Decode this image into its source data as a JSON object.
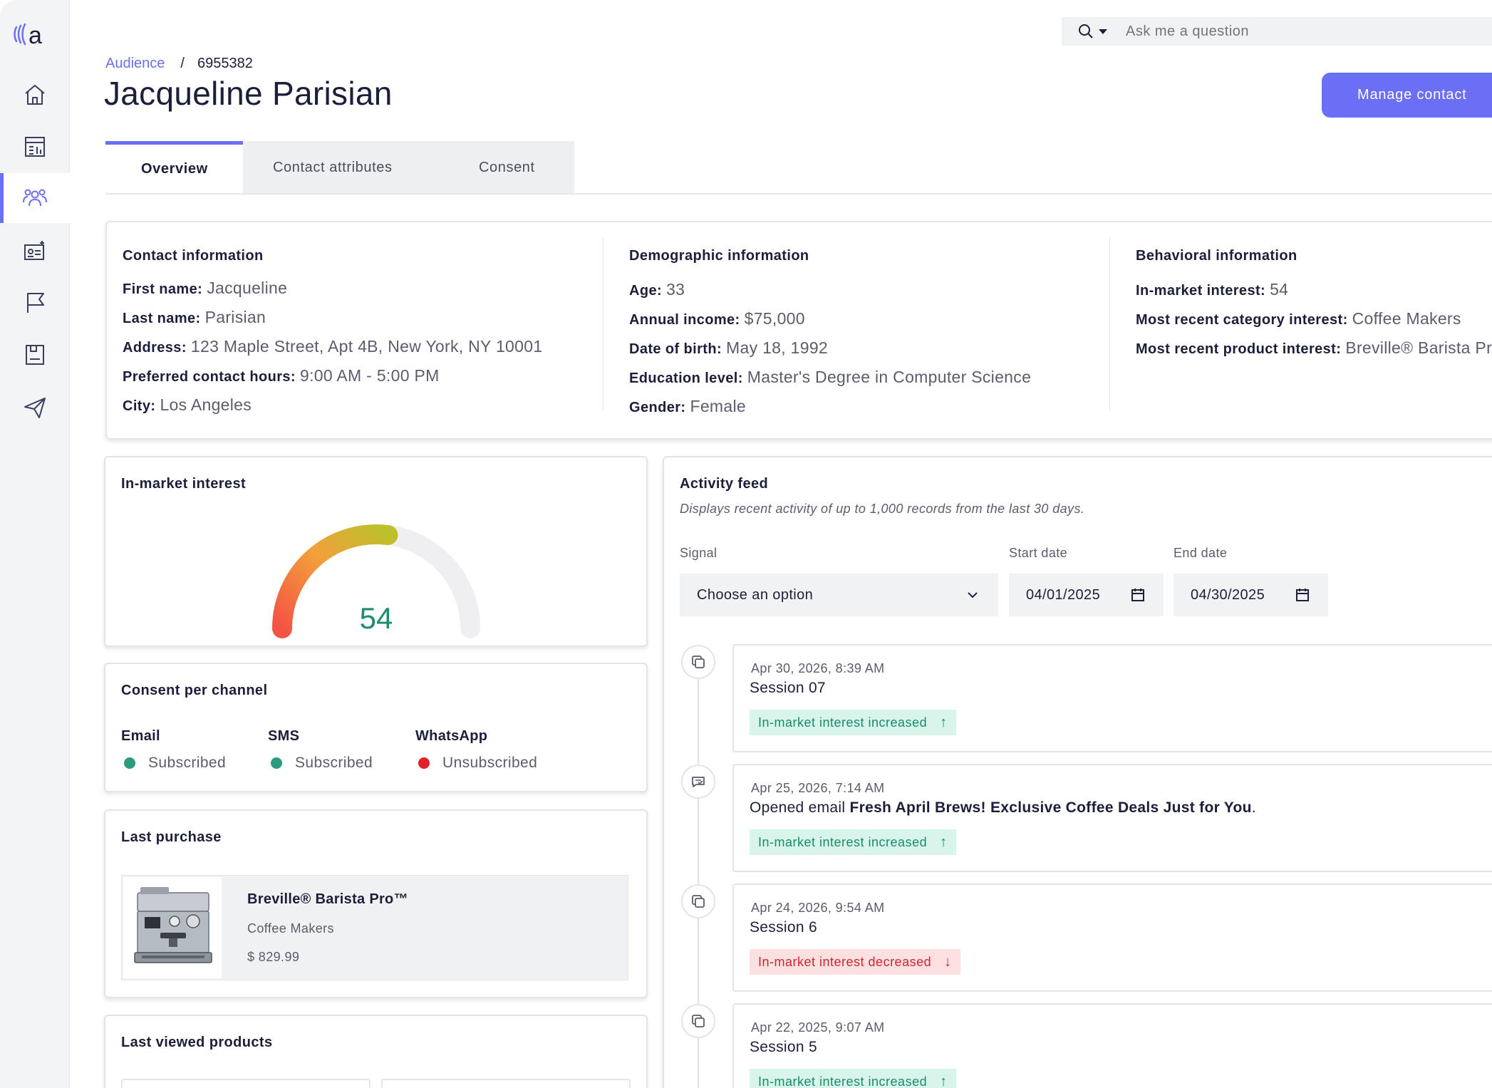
{
  "colors": {
    "accent": "#6b6ff5",
    "subscribed": "#2b9a80",
    "unsubscribed": "#e0222d",
    "tag_up_bg": "#d7f5ea",
    "tag_down_bg": "#fde1e1"
  },
  "sidebar": {
    "items": [
      {
        "icon": "home-icon"
      },
      {
        "icon": "dashboard-icon"
      },
      {
        "icon": "audience-icon",
        "active": true
      },
      {
        "icon": "contact-card-icon"
      },
      {
        "icon": "flag-icon"
      },
      {
        "icon": "save-icon"
      },
      {
        "icon": "send-icon"
      }
    ]
  },
  "search": {
    "placeholder": "Ask me a question"
  },
  "breadcrumb": {
    "parent": "Audience",
    "separator": "/",
    "current": "6955382"
  },
  "page": {
    "title": "Jacqueline Parisian",
    "action": "Manage contact"
  },
  "tabs": [
    {
      "label": "Overview",
      "active": true
    },
    {
      "label": "Contact attributes"
    },
    {
      "label": "Consent"
    }
  ],
  "contact_info": {
    "title": "Contact information",
    "first_name_label": "First name:",
    "first_name": "Jacqueline",
    "last_name_label": "Last name:",
    "last_name": "Parisian",
    "address_label": "Address:",
    "address": "123 Maple Street, Apt 4B, New York, NY 10001",
    "hours_label": "Preferred contact hours:",
    "hours": "9:00 AM - 5:00 PM",
    "city_label": "City:",
    "city": "Los Angeles"
  },
  "demographic_info": {
    "title": "Demographic information",
    "age_label": "Age:",
    "age": "33",
    "income_label": "Annual income:",
    "income": "$75,000",
    "dob_label": "Date of birth:",
    "dob": "May 18, 1992",
    "education_label": "Education level:",
    "education": "Master's Degree in Computer Science",
    "gender_label": "Gender:",
    "gender": "Female"
  },
  "behavioral_info": {
    "title": "Behavioral information",
    "interest_label": "In-market interest:",
    "interest": "54",
    "category_label": "Most recent category interest:",
    "category": "Coffee Makers",
    "product_label": "Most recent product interest:",
    "product": "Breville® Barista Pro™"
  },
  "gauge": {
    "title": "In-market interest",
    "value": 54,
    "display": "54",
    "max": 100
  },
  "consent": {
    "title": "Consent per channel",
    "channels": [
      {
        "name": "Email",
        "status": "Subscribed"
      },
      {
        "name": "SMS",
        "status": "Subscribed"
      },
      {
        "name": "WhatsApp",
        "status": "Unsubscribed"
      }
    ]
  },
  "last_purchase": {
    "title": "Last purchase",
    "name": "Breville® Barista Pro™",
    "category": "Coffee Makers",
    "price": "$ 829.99"
  },
  "last_viewed": {
    "title": "Last viewed products"
  },
  "activity": {
    "title": "Activity feed",
    "subtitle": "Displays recent activity of up to 1,000 records from the last 30 days.",
    "signal_label": "Signal",
    "signal_value": "Choose an option",
    "start_label": "Start date",
    "start_value": "04/01/2025",
    "end_label": "End date",
    "end_value": "04/30/2025",
    "events": [
      {
        "icon": "session-icon",
        "date": "Apr 30, 2026, 8:39 AM",
        "title": "Session 07",
        "tag": "In-market interest increased",
        "direction": "up"
      },
      {
        "icon": "email-opened-icon",
        "date": "Apr 25, 2026, 7:14 AM",
        "title_prefix": "Opened email ",
        "title_bold": "Fresh April Brews! Exclusive Coffee Deals Just for You",
        "title_suffix": ".",
        "tag": "In-market interest increased",
        "direction": "up"
      },
      {
        "icon": "session-icon",
        "date": "Apr 24, 2026, 9:54 AM",
        "title": "Session 6",
        "tag": "In-market interest decreased",
        "direction": "down"
      },
      {
        "icon": "session-icon",
        "date": "Apr 22, 2025, 9:07 AM",
        "title": "Session 5",
        "tag": "In-market interest increased",
        "direction": "up"
      }
    ]
  }
}
